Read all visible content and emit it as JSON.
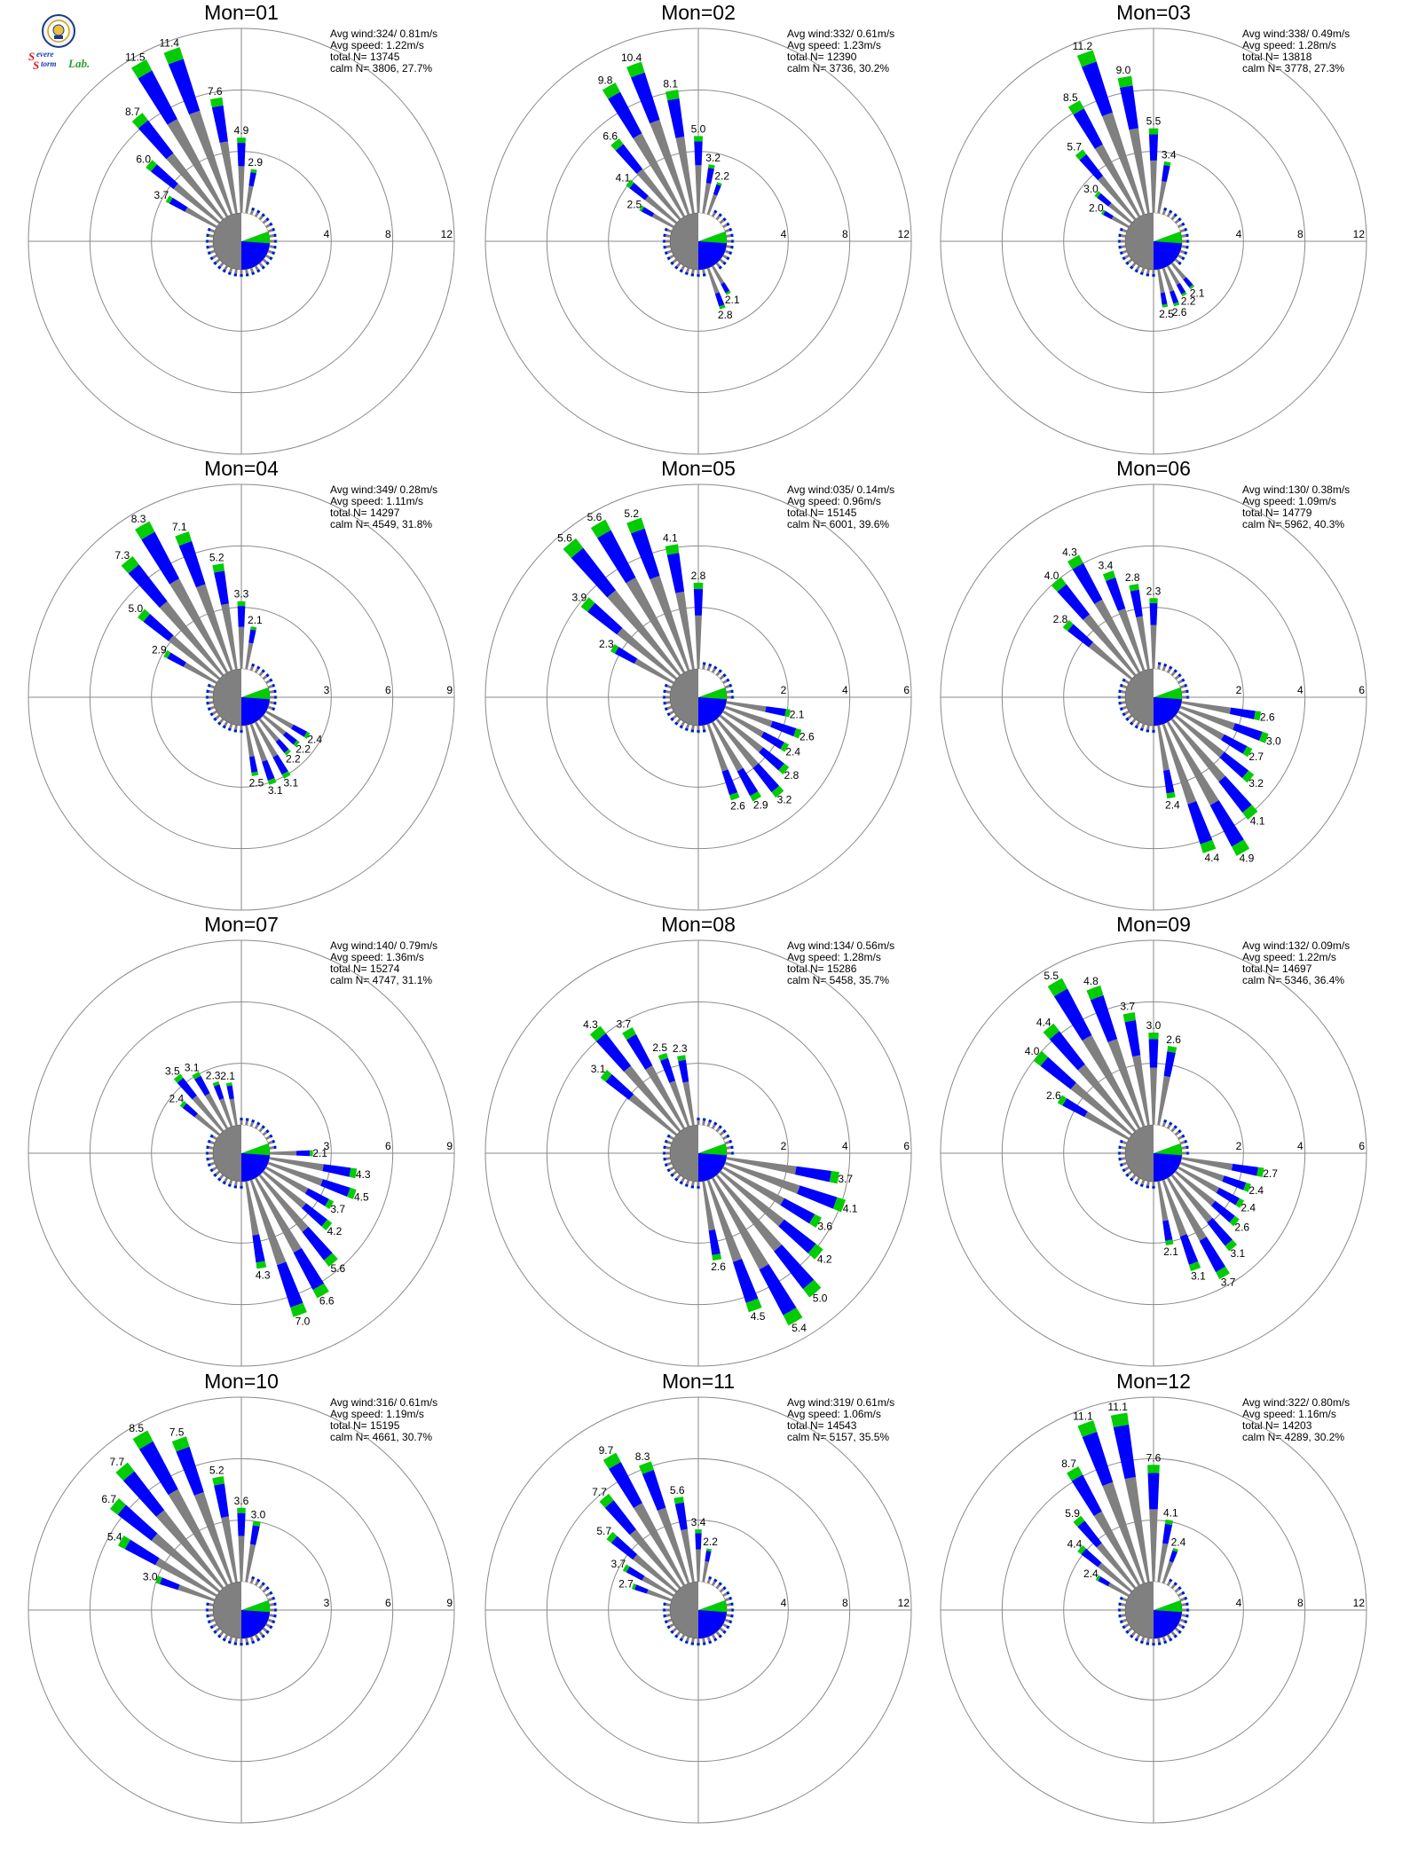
{
  "logo": {
    "mark_s1": "S",
    "word1": "evere",
    "mark_s2": "S",
    "word2": "torm",
    "word3": "Lab."
  },
  "colors": {
    "calm_low": "#808080",
    "mid": "#0000ff",
    "high": "#00cc00",
    "extreme": "#ff7f27",
    "grid": "#8a8a8a"
  },
  "chart_data": [
    {
      "type": "wind-rose",
      "title": "Mon=01",
      "avg_wind": "Avg wind:324/ 0.81m/s",
      "avg_speed": "Avg speed: 1.22m/s",
      "total": "total N=      13745",
      "calm": "calm N=   3806,  27.7%",
      "rings": [
        4,
        8,
        12
      ],
      "rmax": 12,
      "labeled": [
        {
          "dir": 320,
          "value": 8.7
        },
        {
          "dir": 310,
          "value": 6.0
        },
        {
          "dir": 300,
          "value": 3.7
        },
        {
          "dir": 330,
          "value": 11.5
        },
        {
          "dir": 340,
          "value": 11.4
        },
        {
          "dir": 350,
          "value": 7.6
        },
        {
          "dir": 0,
          "value": 4.9
        },
        {
          "dir": 10,
          "value": 2.9
        }
      ]
    },
    {
      "type": "wind-rose",
      "title": "Mon=02",
      "avg_wind": "Avg wind:332/ 0.61m/s",
      "avg_speed": "Avg speed: 1.23m/s",
      "total": "total N=      12390",
      "calm": "calm N=   3736,  30.2%",
      "rings": [
        4,
        8,
        12
      ],
      "rmax": 12,
      "labeled": [
        {
          "dir": 300,
          "value": 2.5
        },
        {
          "dir": 310,
          "value": 4.1
        },
        {
          "dir": 320,
          "value": 6.6
        },
        {
          "dir": 330,
          "value": 9.8
        },
        {
          "dir": 340,
          "value": 10.4
        },
        {
          "dir": 350,
          "value": 8.1
        },
        {
          "dir": 0,
          "value": 5.0
        },
        {
          "dir": 10,
          "value": 3.2
        },
        {
          "dir": 20,
          "value": 2.2
        },
        {
          "dir": 150,
          "value": 2.1
        },
        {
          "dir": 160,
          "value": 2.8
        }
      ]
    },
    {
      "type": "wind-rose",
      "title": "Mon=03",
      "avg_wind": "Avg wind:338/ 0.49m/s",
      "avg_speed": "Avg speed: 1.28m/s",
      "total": "total N=      13818",
      "calm": "calm N=   3778,  27.3%",
      "rings": [
        4,
        8,
        12
      ],
      "rmax": 12,
      "labeled": [
        {
          "dir": 300,
          "value": 2.0
        },
        {
          "dir": 310,
          "value": 3.0
        },
        {
          "dir": 320,
          "value": 5.7
        },
        {
          "dir": 330,
          "value": 8.5
        },
        {
          "dir": 340,
          "value": 11.2
        },
        {
          "dir": 350,
          "value": 9.0
        },
        {
          "dir": 0,
          "value": 5.5
        },
        {
          "dir": 10,
          "value": 3.4
        },
        {
          "dir": 140,
          "value": 2.1
        },
        {
          "dir": 150,
          "value": 2.2
        },
        {
          "dir": 160,
          "value": 2.6
        },
        {
          "dir": 170,
          "value": 2.5
        }
      ]
    },
    {
      "type": "wind-rose",
      "title": "Mon=04",
      "avg_wind": "Avg wind:349/ 0.28m/s",
      "avg_speed": "Avg speed: 1.11m/s",
      "total": "total N=      14297",
      "calm": "calm N=   4549,  31.8%",
      "rings": [
        3,
        6,
        9
      ],
      "rmax": 9,
      "labeled": [
        {
          "dir": 300,
          "value": 2.9
        },
        {
          "dir": 310,
          "value": 5.0
        },
        {
          "dir": 320,
          "value": 7.3
        },
        {
          "dir": 330,
          "value": 8.3
        },
        {
          "dir": 340,
          "value": 7.1
        },
        {
          "dir": 350,
          "value": 5.2
        },
        {
          "dir": 0,
          "value": 3.3
        },
        {
          "dir": 10,
          "value": 2.1
        },
        {
          "dir": 120,
          "value": 2.4
        },
        {
          "dir": 130,
          "value": 2.2
        },
        {
          "dir": 140,
          "value": 2.2
        },
        {
          "dir": 150,
          "value": 3.1
        },
        {
          "dir": 160,
          "value": 3.1
        },
        {
          "dir": 170,
          "value": 2.5
        }
      ]
    },
    {
      "type": "wind-rose",
      "title": "Mon=05",
      "avg_wind": "Avg wind:035/ 0.14m/s",
      "avg_speed": "Avg speed: 0.96m/s",
      "total": "total N=      15145",
      "calm": "calm N=   6001,  39.6%",
      "rings": [
        2,
        4,
        6
      ],
      "rmax": 6,
      "labeled": [
        {
          "dir": 300,
          "value": 2.3
        },
        {
          "dir": 310,
          "value": 3.9
        },
        {
          "dir": 320,
          "value": 5.6
        },
        {
          "dir": 330,
          "value": 5.6
        },
        {
          "dir": 340,
          "value": 5.2
        },
        {
          "dir": 350,
          "value": 4.1
        },
        {
          "dir": 0,
          "value": 2.8
        },
        {
          "dir": 100,
          "value": 2.1
        },
        {
          "dir": 110,
          "value": 2.6
        },
        {
          "dir": 120,
          "value": 2.4
        },
        {
          "dir": 130,
          "value": 2.8
        },
        {
          "dir": 140,
          "value": 3.2
        },
        {
          "dir": 150,
          "value": 2.9
        },
        {
          "dir": 160,
          "value": 2.6
        }
      ]
    },
    {
      "type": "wind-rose",
      "title": "Mon=06",
      "avg_wind": "Avg wind:130/ 0.38m/s",
      "avg_speed": "Avg speed: 1.09m/s",
      "total": "total N=      14779",
      "calm": "calm N=   5962,  40.3%",
      "rings": [
        2,
        4,
        6
      ],
      "rmax": 6,
      "labeled": [
        {
          "dir": 310,
          "value": 2.8
        },
        {
          "dir": 320,
          "value": 4.0
        },
        {
          "dir": 330,
          "value": 4.3
        },
        {
          "dir": 340,
          "value": 3.4
        },
        {
          "dir": 350,
          "value": 2.8
        },
        {
          "dir": 0,
          "value": 2.3
        },
        {
          "dir": 100,
          "value": 2.6
        },
        {
          "dir": 110,
          "value": 3.0
        },
        {
          "dir": 120,
          "value": 2.7
        },
        {
          "dir": 130,
          "value": 3.2
        },
        {
          "dir": 140,
          "value": 4.1
        },
        {
          "dir": 150,
          "value": 4.9
        },
        {
          "dir": 160,
          "value": 4.4
        },
        {
          "dir": 170,
          "value": 2.4
        }
      ]
    },
    {
      "type": "wind-rose",
      "title": "Mon=07",
      "avg_wind": "Avg wind:140/ 0.79m/s",
      "avg_speed": "Avg speed: 1.36m/s",
      "total": "total N=      15274",
      "calm": "calm N=   4747,  31.1%",
      "rings": [
        3,
        6,
        9
      ],
      "rmax": 9,
      "labeled": [
        {
          "dir": 310,
          "value": 2.4
        },
        {
          "dir": 320,
          "value": 3.5
        },
        {
          "dir": 330,
          "value": 3.1
        },
        {
          "dir": 340,
          "value": 2.3
        },
        {
          "dir": 350,
          "value": 2.1
        },
        {
          "dir": 90,
          "value": 2.1
        },
        {
          "dir": 100,
          "value": 4.3
        },
        {
          "dir": 110,
          "value": 4.5
        },
        {
          "dir": 120,
          "value": 3.7
        },
        {
          "dir": 130,
          "value": 4.2
        },
        {
          "dir": 140,
          "value": 5.6
        },
        {
          "dir": 150,
          "value": 6.6
        },
        {
          "dir": 160,
          "value": 7.0
        },
        {
          "dir": 170,
          "value": 4.3
        }
      ]
    },
    {
      "type": "wind-rose",
      "title": "Mon=08",
      "avg_wind": "Avg wind:134/ 0.56m/s",
      "avg_speed": "Avg speed: 1.28m/s",
      "total": "total N=      15286",
      "calm": "calm N=   5458,  35.7%",
      "rings": [
        2,
        4,
        6
      ],
      "rmax": 6,
      "labeled": [
        {
          "dir": 310,
          "value": 3.1
        },
        {
          "dir": 320,
          "value": 4.3
        },
        {
          "dir": 330,
          "value": 3.7
        },
        {
          "dir": 340,
          "value": 2.5
        },
        {
          "dir": 350,
          "value": 2.3
        },
        {
          "dir": 100,
          "value": 3.7
        },
        {
          "dir": 110,
          "value": 4.1
        },
        {
          "dir": 120,
          "value": 3.6
        },
        {
          "dir": 130,
          "value": 4.2
        },
        {
          "dir": 140,
          "value": 5.0
        },
        {
          "dir": 150,
          "value": 5.4
        },
        {
          "dir": 160,
          "value": 4.5
        },
        {
          "dir": 170,
          "value": 2.6
        }
      ]
    },
    {
      "type": "wind-rose",
      "title": "Mon=09",
      "avg_wind": "Avg wind:132/ 0.09m/s",
      "avg_speed": "Avg speed: 1.22m/s",
      "total": "total N=      14697",
      "calm": "calm N=   5346,  36.4%",
      "rings": [
        2,
        4,
        6
      ],
      "rmax": 6,
      "labeled": [
        {
          "dir": 300,
          "value": 2.6
        },
        {
          "dir": 310,
          "value": 4.0
        },
        {
          "dir": 320,
          "value": 4.4
        },
        {
          "dir": 330,
          "value": 5.5
        },
        {
          "dir": 340,
          "value": 4.8
        },
        {
          "dir": 350,
          "value": 3.7
        },
        {
          "dir": 0,
          "value": 3.0
        },
        {
          "dir": 10,
          "value": 2.6
        },
        {
          "dir": 100,
          "value": 2.7
        },
        {
          "dir": 110,
          "value": 2.4
        },
        {
          "dir": 120,
          "value": 2.4
        },
        {
          "dir": 130,
          "value": 2.6
        },
        {
          "dir": 140,
          "value": 3.1
        },
        {
          "dir": 150,
          "value": 3.7
        },
        {
          "dir": 160,
          "value": 3.1
        },
        {
          "dir": 170,
          "value": 2.1
        }
      ]
    },
    {
      "type": "wind-rose",
      "title": "Mon=10",
      "avg_wind": "Avg wind:316/ 0.61m/s",
      "avg_speed": "Avg speed: 1.19m/s",
      "total": "total N=      15195",
      "calm": "calm N=   4661,  30.7%",
      "rings": [
        3,
        6,
        9
      ],
      "rmax": 9,
      "labeled": [
        {
          "dir": 290,
          "value": 3.0
        },
        {
          "dir": 300,
          "value": 5.4
        },
        {
          "dir": 310,
          "value": 6.7
        },
        {
          "dir": 320,
          "value": 7.7
        },
        {
          "dir": 330,
          "value": 8.5
        },
        {
          "dir": 340,
          "value": 7.5
        },
        {
          "dir": 350,
          "value": 5.2
        },
        {
          "dir": 0,
          "value": 3.6
        },
        {
          "dir": 10,
          "value": 3.0
        }
      ]
    },
    {
      "type": "wind-rose",
      "title": "Mon=11",
      "avg_wind": "Avg wind:319/ 0.61m/s",
      "avg_speed": "Avg speed: 1.06m/s",
      "total": "total N=      14543",
      "calm": "calm N=   5157,  35.5%",
      "rings": [
        4,
        8,
        12
      ],
      "rmax": 12,
      "labeled": [
        {
          "dir": 290,
          "value": 2.7
        },
        {
          "dir": 300,
          "value": 3.7
        },
        {
          "dir": 310,
          "value": 5.7
        },
        {
          "dir": 320,
          "value": 7.7
        },
        {
          "dir": 330,
          "value": 9.7
        },
        {
          "dir": 340,
          "value": 8.3
        },
        {
          "dir": 350,
          "value": 5.6
        },
        {
          "dir": 0,
          "value": 3.4
        },
        {
          "dir": 10,
          "value": 2.2
        }
      ]
    },
    {
      "type": "wind-rose",
      "title": "Mon=12",
      "avg_wind": "Avg wind:322/ 0.80m/s",
      "avg_speed": "Avg speed: 1.16m/s",
      "total": "total N=      14203",
      "calm": "calm N=   4289,  30.2%",
      "rings": [
        4,
        8,
        12
      ],
      "rmax": 12,
      "labeled": [
        {
          "dir": 300,
          "value": 2.4
        },
        {
          "dir": 310,
          "value": 4.4
        },
        {
          "dir": 320,
          "value": 5.9
        },
        {
          "dir": 330,
          "value": 8.7
        },
        {
          "dir": 340,
          "value": 11.1
        },
        {
          "dir": 350,
          "value": 11.1
        },
        {
          "dir": 0,
          "value": 7.6
        },
        {
          "dir": 10,
          "value": 4.1
        },
        {
          "dir": 20,
          "value": 2.4
        }
      ]
    }
  ]
}
